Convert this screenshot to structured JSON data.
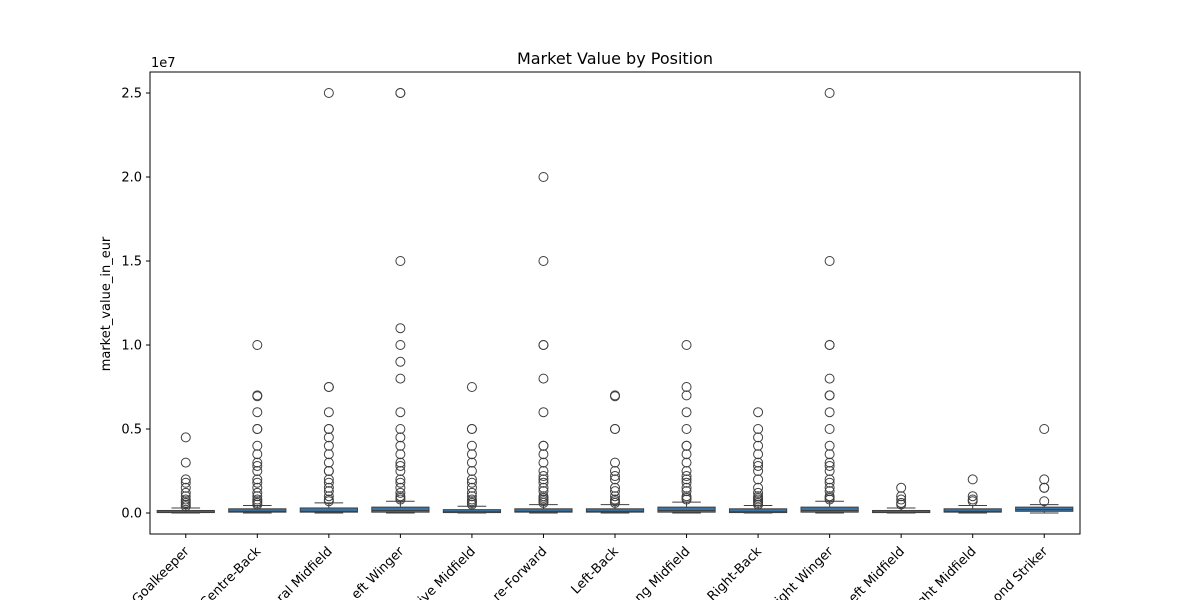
{
  "chart_data": {
    "type": "box",
    "title": "Market Value by Position",
    "xlabel": "",
    "ylabel": "market_value_in_eur",
    "y_scale_label": "1e7",
    "y_scale": 10000000,
    "ylim": [
      -1250000,
      26250000
    ],
    "y_ticks": [
      0,
      5000000,
      10000000,
      15000000,
      20000000,
      25000000
    ],
    "y_tick_labels": [
      "0.0",
      "0.5",
      "1.0",
      "1.5",
      "2.0",
      "2.5"
    ],
    "x_tick_rotation": 45,
    "box_color": "#3a75a8",
    "categories": [
      "Goalkeeper",
      "Centre-Back",
      "Central Midfield",
      "Left Winger",
      "Defensive Midfield",
      "Centre-Forward",
      "Left-Back",
      "Attacking Midfield",
      "Right-Back",
      "Right Winger",
      "Left Midfield",
      "Right Midfield",
      "Second Striker"
    ],
    "x_tick_labels_visible": [
      "Goalkeeper",
      "Centre-Back",
      "ral Midfield",
      "eft Winger",
      "ive Midfield",
      "re-Forward",
      "Left-Back",
      "ng Midfield",
      "Right-Back",
      "ight Winger",
      "eft Midfield",
      "ght Midfield",
      "ond Striker"
    ],
    "boxes": [
      {
        "category": "Goalkeeper",
        "whisker_low": 0,
        "q1": 25000,
        "median": 50000,
        "q3": 150000,
        "whisker_high": 300000,
        "outliers": [
          4500000,
          3000000,
          2000000,
          1800000,
          1500000,
          1200000,
          1000000,
          800000,
          700000,
          600000,
          500000,
          400000
        ]
      },
      {
        "category": "Centre-Back",
        "whisker_low": 0,
        "q1": 50000,
        "median": 100000,
        "q3": 250000,
        "whisker_high": 450000,
        "outliers": [
          10000000,
          7000000,
          6950000,
          6000000,
          5000000,
          5000000,
          4000000,
          3500000,
          3000000,
          2800000,
          2500000,
          2000000,
          1800000,
          1500000,
          1200000,
          1000000,
          800000,
          700000,
          600000,
          500000
        ]
      },
      {
        "category": "Central Midfield",
        "whisker_low": 0,
        "q1": 50000,
        "median": 100000,
        "q3": 300000,
        "whisker_high": 600000,
        "outliers": [
          25000000,
          7500000,
          7500000,
          6000000,
          5000000,
          5000000,
          4500000,
          4000000,
          3500000,
          3000000,
          2500000,
          2500000,
          2000000,
          1800000,
          1500000,
          1300000,
          1000000,
          800000,
          700000
        ]
      },
      {
        "category": "Left Winger",
        "whisker_low": 0,
        "q1": 50000,
        "median": 150000,
        "q3": 350000,
        "whisker_high": 700000,
        "outliers": [
          25000000,
          25000000,
          15000000,
          11000000,
          10000000,
          9000000,
          8000000,
          6000000,
          5000000,
          4500000,
          4000000,
          3500000,
          3000000,
          2800000,
          2500000,
          2000000,
          1800000,
          1500000,
          1200000,
          1000000,
          900000,
          800000
        ]
      },
      {
        "category": "Defensive Midfield",
        "whisker_low": 0,
        "q1": 25000,
        "median": 75000,
        "q3": 200000,
        "whisker_high": 400000,
        "outliers": [
          7500000,
          5000000,
          5000000,
          4000000,
          3500000,
          3000000,
          2500000,
          2000000,
          1800000,
          1500000,
          1200000,
          1000000,
          800000,
          700000,
          600000,
          500000
        ]
      },
      {
        "category": "Centre-Forward",
        "whisker_low": 0,
        "q1": 50000,
        "median": 100000,
        "q3": 250000,
        "whisker_high": 500000,
        "outliers": [
          20000000,
          15000000,
          10000000,
          10000000,
          8000000,
          6000000,
          4000000,
          4000000,
          3500000,
          3000000,
          2500000,
          2200000,
          2000000,
          1800000,
          1500000,
          1300000,
          1000000,
          900000,
          800000,
          700000,
          600000
        ]
      },
      {
        "category": "Left-Back",
        "whisker_low": 0,
        "q1": 50000,
        "median": 100000,
        "q3": 250000,
        "whisker_high": 500000,
        "outliers": [
          7000000,
          6950000,
          5000000,
          5000000,
          3000000,
          2500000,
          2200000,
          2000000,
          1500000,
          1300000,
          1000000,
          800000,
          700000,
          600000
        ]
      },
      {
        "category": "Attacking Midfield",
        "whisker_low": 0,
        "q1": 50000,
        "median": 150000,
        "q3": 350000,
        "whisker_high": 650000,
        "outliers": [
          10000000,
          7500000,
          7000000,
          6000000,
          5000000,
          4000000,
          4000000,
          3500000,
          3000000,
          2500000,
          2200000,
          2000000,
          1800000,
          1500000,
          1300000,
          1000000,
          900000,
          800000
        ]
      },
      {
        "category": "Right-Back",
        "whisker_low": 0,
        "q1": 25000,
        "median": 75000,
        "q3": 250000,
        "whisker_high": 450000,
        "outliers": [
          6000000,
          5000000,
          4500000,
          4000000,
          3500000,
          3000000,
          2800000,
          2500000,
          2000000,
          1500000,
          1200000,
          1000000,
          900000,
          800000,
          700000,
          600000,
          500000
        ]
      },
      {
        "category": "Right Winger",
        "whisker_low": 0,
        "q1": 50000,
        "median": 150000,
        "q3": 350000,
        "whisker_high": 700000,
        "outliers": [
          25000000,
          15000000,
          10000000,
          10000000,
          8000000,
          7000000,
          7000000,
          6000000,
          5000000,
          4000000,
          3500000,
          3000000,
          2800000,
          2500000,
          2000000,
          1800000,
          1500000,
          1300000,
          1000000,
          900000,
          800000
        ]
      },
      {
        "category": "Left Midfield",
        "whisker_low": 0,
        "q1": 25000,
        "median": 50000,
        "q3": 150000,
        "whisker_high": 300000,
        "outliers": [
          1500000,
          1000000,
          800000,
          600000,
          500000
        ]
      },
      {
        "category": "Right Midfield",
        "whisker_low": 0,
        "q1": 50000,
        "median": 100000,
        "q3": 250000,
        "whisker_high": 450000,
        "outliers": [
          2000000,
          1000000,
          800000,
          700000
        ]
      },
      {
        "category": "Second Striker",
        "whisker_low": 0,
        "q1": 100000,
        "median": 200000,
        "q3": 350000,
        "whisker_high": 500000,
        "outliers": [
          5000000,
          2000000,
          1500000,
          1500000,
          700000
        ]
      }
    ]
  }
}
